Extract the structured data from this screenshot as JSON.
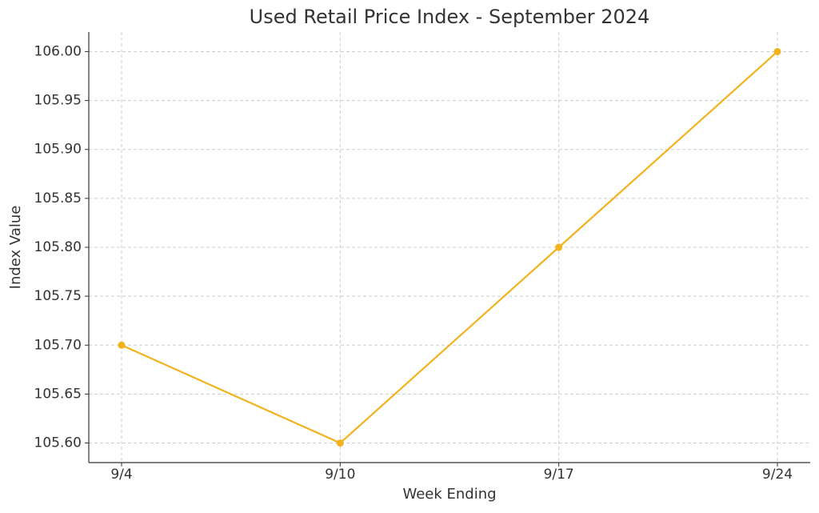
{
  "chart_data": {
    "type": "line",
    "title": "Used Retail Price Index - September 2024",
    "x_label": "Week Ending",
    "y_label": "Index Value",
    "categories": [
      "9/4",
      "9/10",
      "9/17",
      "9/24"
    ],
    "values": [
      105.7,
      105.6,
      105.8,
      106.0
    ],
    "color": "#f2b21c",
    "ylim": [
      105.58,
      106.02
    ],
    "yticks": [
      {
        "value": 105.6,
        "label": "105.60"
      },
      {
        "value": 105.65,
        "label": "105.65"
      },
      {
        "value": 105.7,
        "label": "105.70"
      },
      {
        "value": 105.75,
        "label": "105.75"
      },
      {
        "value": 105.8,
        "label": "105.80"
      },
      {
        "value": 105.85,
        "label": "105.85"
      },
      {
        "value": 105.9,
        "label": "105.90"
      },
      {
        "value": 105.95,
        "label": "105.95"
      },
      {
        "value": 106,
        "label": "106.00"
      }
    ],
    "grid": true
  }
}
